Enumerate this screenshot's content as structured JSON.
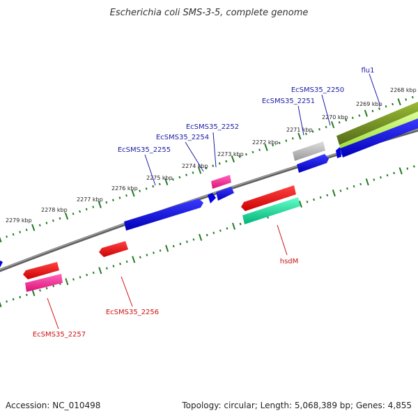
{
  "map": {
    "title": "Escherichia coli SMS-3-5, complete genome",
    "accession": "Accession: NC_010498",
    "summary": "Topology: circular; Length: 5,068,389 bp; Genes: 4,855"
  },
  "colors": {
    "backbone": "#808080",
    "tick": "#1f7a1f",
    "label_top": "#1a1aa6",
    "label_bottom": "#cc1111",
    "forward_cds": "#0000e0",
    "reverse_cds": "#ee0000",
    "rna": "#ff3399",
    "other": "#00cc88",
    "pseudo": "#aaaaaa",
    "highlight": "#88cc22"
  },
  "ticks": [
    "2268 kbp",
    "2269 kbp",
    "2270 kbp",
    "2271 kbp",
    "2272 kbp",
    "2273 kbp",
    "2274 kbp",
    "2275 kbp",
    "2276 kbp",
    "2277 kbp",
    "2278 kbp",
    "2279 kbp"
  ],
  "genes_top": [
    {
      "name": "flu1",
      "strand": "forward"
    },
    {
      "name": "EcSMS35_2250",
      "strand": "forward"
    },
    {
      "name": "EcSMS35_2251",
      "strand": "forward"
    },
    {
      "name": "EcSMS35_2252",
      "strand": "forward"
    },
    {
      "name": "EcSMS35_2254",
      "strand": "forward"
    },
    {
      "name": "EcSMS35_2255",
      "strand": "forward"
    }
  ],
  "genes_bottom": [
    {
      "name": "hsdM",
      "strand": "reverse"
    },
    {
      "name": "EcSMS35_2256",
      "strand": "reverse"
    },
    {
      "name": "EcSMS35_2257",
      "strand": "reverse"
    }
  ]
}
